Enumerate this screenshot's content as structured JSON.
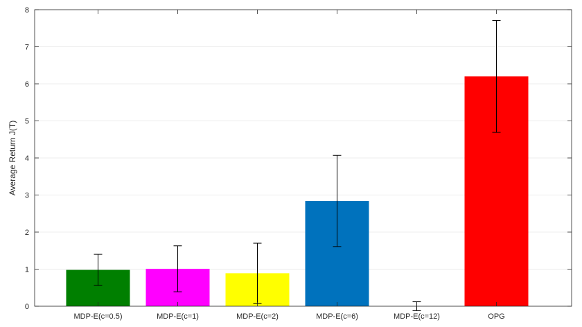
{
  "chart_data": {
    "type": "bar",
    "title": "",
    "xlabel": "",
    "ylabel": "Average Return J(T)",
    "ylim": [
      0,
      8
    ],
    "yticks": [
      0,
      1,
      2,
      3,
      4,
      5,
      6,
      7,
      8
    ],
    "grid": "horizontal",
    "categories": [
      "MDP-E(c=0.5)",
      "MDP-E(c=1)",
      "MDP-E(c=2)",
      "MDP-E(c=6)",
      "MDP-E(c=12)",
      "OPG"
    ],
    "values": [
      0.98,
      1.01,
      0.89,
      2.84,
      0.0,
      6.2
    ],
    "error_low": [
      0.56,
      0.39,
      0.07,
      1.61,
      -0.12,
      4.69
    ],
    "error_high": [
      1.4,
      1.63,
      1.7,
      4.07,
      0.12,
      7.71
    ],
    "colors": [
      "#007f00",
      "#ff00ff",
      "#ffff00",
      "#0072bd",
      "#ffffff",
      "#ff0000"
    ]
  }
}
